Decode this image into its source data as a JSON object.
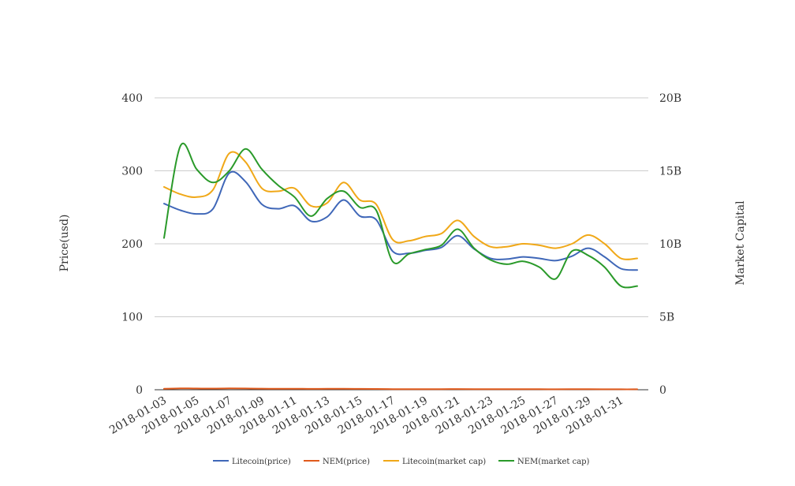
{
  "chart_data": {
    "type": "line",
    "title": "",
    "xlabel": "",
    "ylabel_left": "Price(usd)",
    "ylabel_right": "Market Capital",
    "ylim_left": [
      0,
      400
    ],
    "ylim_right": [
      0,
      20000000000
    ],
    "yticks_left": [
      "0",
      "100",
      "200",
      "300",
      "400"
    ],
    "yticks_right": [
      "0",
      "5B",
      "10B",
      "15B",
      "20B"
    ],
    "grid": true,
    "legend_position": "bottom",
    "x": [
      "2018-01-03",
      "2018-01-04",
      "2018-01-05",
      "2018-01-06",
      "2018-01-07",
      "2018-01-08",
      "2018-01-09",
      "2018-01-10",
      "2018-01-11",
      "2018-01-12",
      "2018-01-13",
      "2018-01-14",
      "2018-01-15",
      "2018-01-16",
      "2018-01-17",
      "2018-01-18",
      "2018-01-19",
      "2018-01-20",
      "2018-01-21",
      "2018-01-22",
      "2018-01-23",
      "2018-01-24",
      "2018-01-25",
      "2018-01-26",
      "2018-01-27",
      "2018-01-28",
      "2018-01-29",
      "2018-01-30",
      "2018-01-31",
      "2018-02-01"
    ],
    "xtick_labels": [
      "2018-01-03",
      "2018-01-05",
      "2018-01-07",
      "2018-01-09",
      "2018-01-11",
      "2018-01-13",
      "2018-01-15",
      "2018-01-17",
      "2018-01-19",
      "2018-01-21",
      "2018-01-23",
      "2018-01-25",
      "2018-01-27",
      "2018-01-29",
      "2018-01-31"
    ],
    "series": [
      {
        "name": "Litecoin(price)",
        "axis": "left",
        "color": "#3f67b8",
        "values": [
          255,
          246,
          241,
          248,
          297,
          285,
          254,
          248,
          252,
          231,
          237,
          260,
          238,
          233,
          190,
          187,
          191,
          195,
          211,
          193,
          180,
          179,
          182,
          180,
          177,
          183,
          194,
          182,
          166,
          164
        ]
      },
      {
        "name": "NEM(price)",
        "axis": "left",
        "color": "#e05a1c",
        "values": [
          1.4,
          1.9,
          1.7,
          1.6,
          1.8,
          1.7,
          1.5,
          1.4,
          1.4,
          1.2,
          1.3,
          1.4,
          1.2,
          1.1,
          0.9,
          0.9,
          0.9,
          0.9,
          1.0,
          0.9,
          0.8,
          0.8,
          0.8,
          0.8,
          0.7,
          0.8,
          0.8,
          0.7,
          0.6,
          0.6
        ]
      },
      {
        "name": "Litecoin(market cap)",
        "axis": "right",
        "color": "#f0a818",
        "values": [
          13900000000,
          13400000000,
          13200000000,
          13700000000,
          16200000000,
          15600000000,
          13800000000,
          13600000000,
          13800000000,
          12600000000,
          12800000000,
          14200000000,
          13000000000,
          12700000000,
          10300000000,
          10200000000,
          10500000000,
          10700000000,
          11600000000,
          10500000000,
          9800000000,
          9800000000,
          10000000000,
          9900000000,
          9700000000,
          10000000000,
          10600000000,
          10000000000,
          9000000000,
          9000000000
        ]
      },
      {
        "name": "NEM(market cap)",
        "axis": "right",
        "color": "#2a9a2a",
        "values": [
          10400000000,
          16700000000,
          15100000000,
          14200000000,
          15000000000,
          16500000000,
          15100000000,
          14000000000,
          13200000000,
          11900000000,
          13100000000,
          13600000000,
          12500000000,
          12300000000,
          8800000000,
          9300000000,
          9600000000,
          9900000000,
          11000000000,
          9700000000,
          8900000000,
          8600000000,
          8800000000,
          8400000000,
          7600000000,
          9500000000,
          9200000000,
          8400000000,
          7100000000,
          7100000000
        ]
      }
    ]
  }
}
